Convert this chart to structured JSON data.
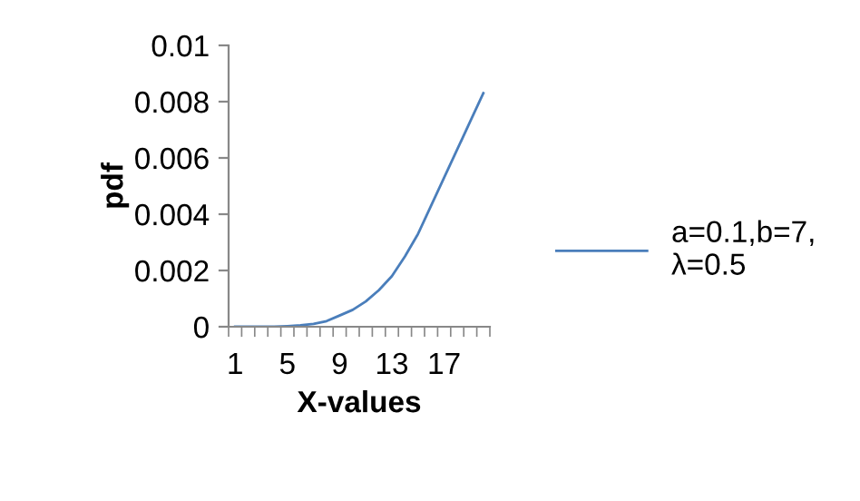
{
  "chart_data": {
    "type": "line",
    "xlabel": "X-values",
    "ylabel": "pdf",
    "categories": [
      "1",
      null,
      null,
      null,
      "5",
      null,
      null,
      null,
      "9",
      null,
      null,
      null,
      "13",
      null,
      null,
      null,
      "17",
      null,
      null,
      null
    ],
    "series": [
      {
        "name": "a=0.1,b=7, λ=0.5",
        "color": "#4a7ebb",
        "values": [
          0,
          0,
          0,
          0,
          2e-05,
          5e-05,
          0.0001,
          0.0002,
          0.0004,
          0.0006,
          0.0009,
          0.0013,
          0.0018,
          0.0025,
          0.0033,
          0.0043,
          0.0053,
          0.0063,
          0.0073,
          0.0083
        ]
      }
    ],
    "ylim": [
      0,
      0.01
    ],
    "yticks": [
      0,
      0.002,
      0.004,
      0.006,
      0.008,
      0.01
    ],
    "grid": false,
    "legend": "right",
    "marker": "none",
    "line_style": "solid"
  }
}
